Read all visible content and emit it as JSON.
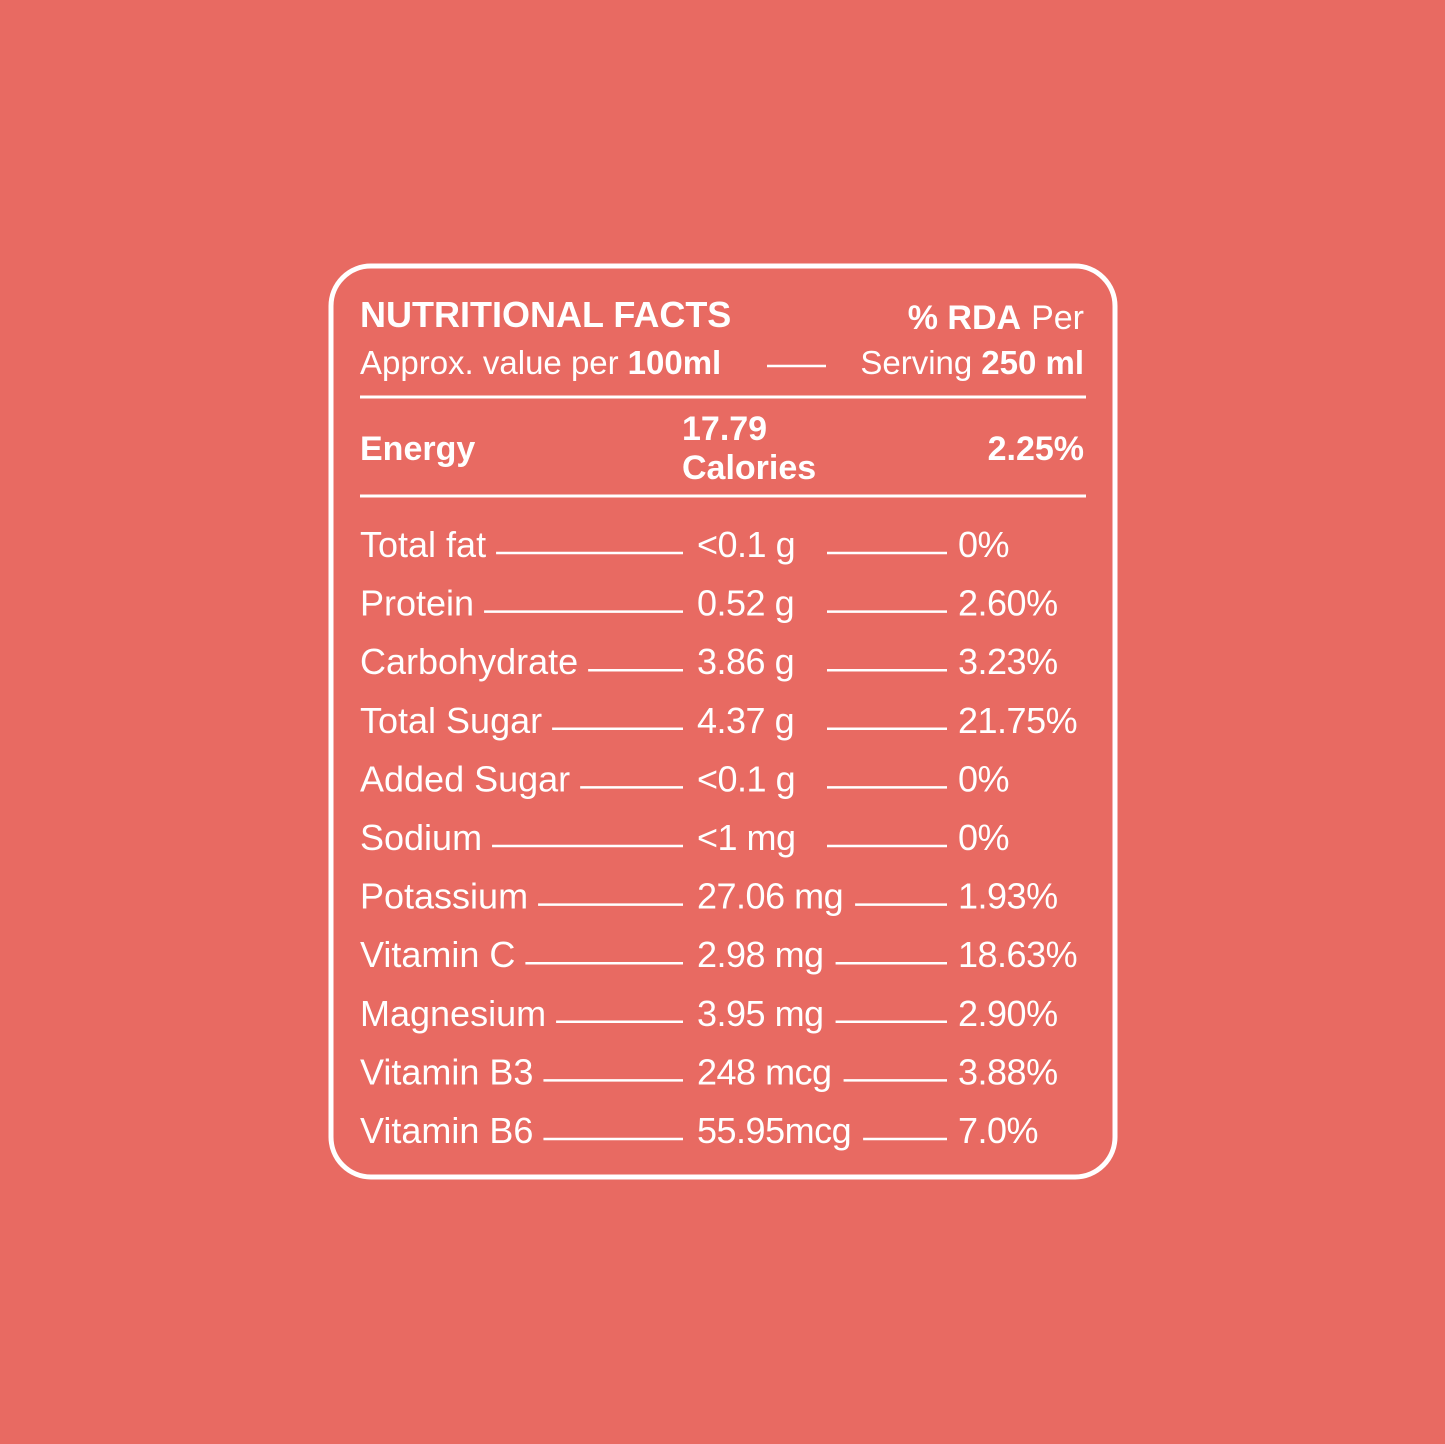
{
  "header": {
    "title": "NUTRITIONAL FACTS",
    "rda_label": "% RDA",
    "rda_suffix": "Per",
    "per_prefix": "Approx. value per",
    "per_amount": "100ml",
    "serving_prefix": "Serving",
    "serving_amount": "250 ml"
  },
  "energy": {
    "label": "Energy",
    "amount": "17.79",
    "unit": "Calories",
    "rda": "2.25%"
  },
  "rows": [
    [
      "Total fat",
      "<0.1 g",
      "0%"
    ],
    [
      "Protein",
      "0.52 g",
      "2.60%"
    ],
    [
      "Carbohydrate",
      "3.86 g",
      "3.23%"
    ],
    [
      "Total Sugar",
      "4.37 g",
      "21.75%"
    ],
    [
      "Added Sugar",
      "<0.1 g",
      "0%"
    ],
    [
      "Sodium",
      "<1 mg",
      "0%"
    ],
    [
      "Potassium",
      "27.06 mg",
      "1.93%"
    ],
    [
      "Vitamin C",
      "2.98 mg",
      "18.63%"
    ],
    [
      "Magnesium",
      "3.95 mg",
      "2.90%"
    ],
    [
      "Vitamin B3",
      "248 mcg",
      "3.88%"
    ],
    [
      "Vitamin B6",
      "55.95mcg",
      "7.0%"
    ]
  ]
}
